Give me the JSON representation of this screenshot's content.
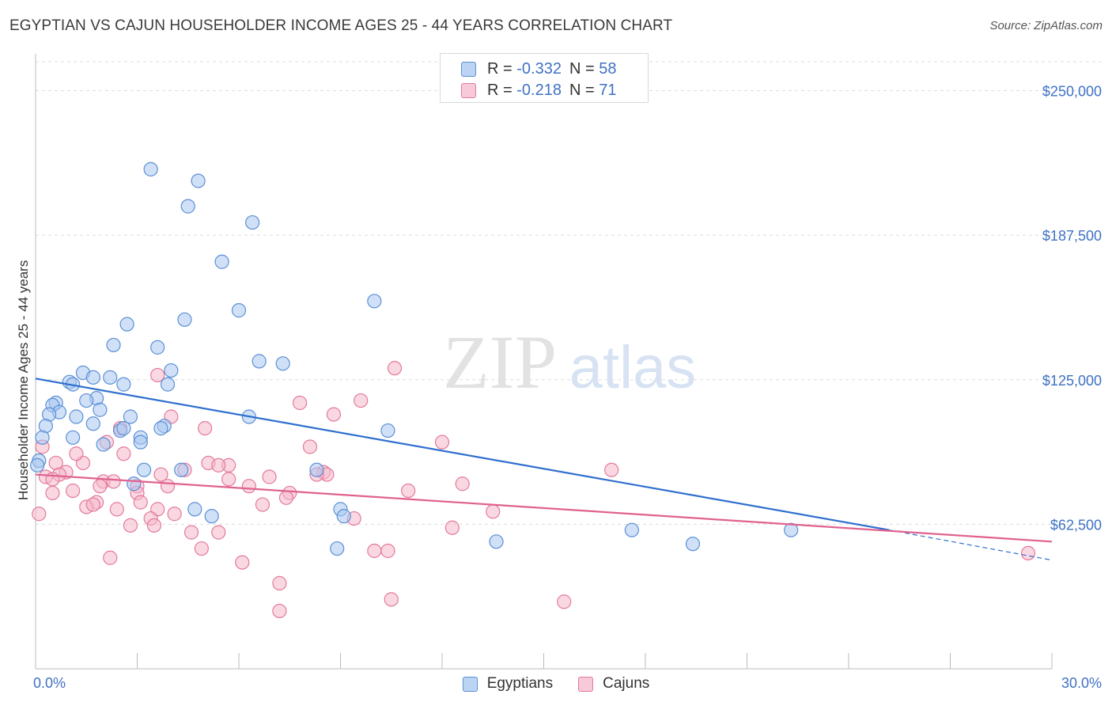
{
  "title": "EGYPTIAN VS CAJUN HOUSEHOLDER INCOME AGES 25 - 44 YEARS CORRELATION CHART",
  "source": "Source: ZipAtlas.com",
  "watermark": {
    "zip": "ZIP",
    "atlas": "atlas"
  },
  "legend_top": {
    "rows": [
      {
        "r_label": "R =",
        "r_value": "-0.332",
        "n_label": "N =",
        "n_value": "58"
      },
      {
        "r_label": "R =",
        "r_value": "-0.218",
        "n_label": "N =",
        "n_value": "71"
      }
    ]
  },
  "legend_bottom": {
    "egyptians": "Egyptians",
    "cajuns": "Cajuns"
  },
  "colors": {
    "blue_fill": "#a9c8f0",
    "blue_stroke": "#5b8fd6",
    "blue_line": "#2f6fce",
    "pink_fill": "#f6b8cb",
    "pink_stroke": "#e37a9c",
    "pink_line": "#e0628f",
    "tick_text": "#3f72c4",
    "grid": "#dcdcdc"
  },
  "chart_data": {
    "type": "scatter",
    "title": "EGYPTIAN VS CAJUN HOUSEHOLDER INCOME AGES 25 - 44 YEARS CORRELATION CHART",
    "xlabel": "",
    "ylabel": "Householder Income Ages 25 - 44 years",
    "xlim": [
      0,
      30
    ],
    "ylim": [
      0,
      262500
    ],
    "x_tick_labels": [
      "0.0%",
      "30.0%"
    ],
    "y_ticks": [
      62500,
      125000,
      187500,
      250000
    ],
    "y_tick_labels": [
      "$62,500",
      "$125,000",
      "$187,500",
      "$250,000"
    ],
    "grid": true,
    "legend_position": "top-center",
    "series": [
      {
        "name": "Egyptians",
        "r": -0.332,
        "n": 58,
        "trend": {
          "x0": 0,
          "y0": 125500,
          "x1": 25.2,
          "y1": 60000,
          "dashed_to_x": 30,
          "dashed_to_y": 47000
        },
        "points": [
          [
            3.4,
            216000
          ],
          [
            4.8,
            211000
          ],
          [
            4.5,
            200000
          ],
          [
            6.4,
            193000
          ],
          [
            5.5,
            176000
          ],
          [
            6.0,
            155000
          ],
          [
            10.0,
            159000
          ],
          [
            2.7,
            149000
          ],
          [
            4.4,
            151000
          ],
          [
            2.3,
            140000
          ],
          [
            3.6,
            139000
          ],
          [
            6.6,
            133000
          ],
          [
            7.3,
            132000
          ],
          [
            4.0,
            129000
          ],
          [
            1.4,
            128000
          ],
          [
            2.2,
            126000
          ],
          [
            1.7,
            126000
          ],
          [
            1.0,
            124000
          ],
          [
            2.6,
            123000
          ],
          [
            3.9,
            123000
          ],
          [
            1.1,
            123000
          ],
          [
            0.6,
            115000
          ],
          [
            0.5,
            114000
          ],
          [
            1.8,
            117000
          ],
          [
            1.5,
            116000
          ],
          [
            1.9,
            112000
          ],
          [
            0.7,
            111000
          ],
          [
            1.2,
            109000
          ],
          [
            0.4,
            110000
          ],
          [
            2.8,
            109000
          ],
          [
            0.3,
            105000
          ],
          [
            1.7,
            106000
          ],
          [
            3.8,
            105000
          ],
          [
            3.7,
            104000
          ],
          [
            2.5,
            103000
          ],
          [
            2.6,
            104000
          ],
          [
            6.3,
            109000
          ],
          [
            10.4,
            103000
          ],
          [
            1.1,
            100000
          ],
          [
            3.1,
            100000
          ],
          [
            3.1,
            98000
          ],
          [
            2.0,
            97000
          ],
          [
            0.2,
            100000
          ],
          [
            0.1,
            90000
          ],
          [
            3.2,
            86000
          ],
          [
            4.3,
            86000
          ],
          [
            8.3,
            86000
          ],
          [
            2.9,
            80000
          ],
          [
            9.0,
            69000
          ],
          [
            4.7,
            69000
          ],
          [
            5.2,
            66000
          ],
          [
            9.1,
            66000
          ],
          [
            17.6,
            60000
          ],
          [
            22.3,
            60000
          ],
          [
            13.6,
            55000
          ],
          [
            19.4,
            54000
          ],
          [
            8.9,
            52000
          ],
          [
            0.05,
            88000
          ]
        ]
      },
      {
        "name": "Cajuns",
        "r": -0.218,
        "n": 71,
        "trend": {
          "x0": 0,
          "y0": 84000,
          "x1": 30,
          "y1": 55000
        },
        "points": [
          [
            10.6,
            130000
          ],
          [
            3.6,
            127000
          ],
          [
            9.6,
            116000
          ],
          [
            7.8,
            115000
          ],
          [
            8.8,
            110000
          ],
          [
            4.0,
            109000
          ],
          [
            5.0,
            104000
          ],
          [
            2.5,
            104000
          ],
          [
            12.0,
            98000
          ],
          [
            8.1,
            96000
          ],
          [
            2.1,
            98000
          ],
          [
            0.2,
            96000
          ],
          [
            2.6,
            93000
          ],
          [
            0.6,
            89000
          ],
          [
            1.4,
            89000
          ],
          [
            5.1,
            89000
          ],
          [
            5.7,
            88000
          ],
          [
            5.4,
            88000
          ],
          [
            4.4,
            86000
          ],
          [
            17.0,
            86000
          ],
          [
            0.9,
            85000
          ],
          [
            0.7,
            84000
          ],
          [
            3.7,
            84000
          ],
          [
            6.9,
            83000
          ],
          [
            8.5,
            85000
          ],
          [
            8.6,
            84000
          ],
          [
            8.3,
            84000
          ],
          [
            5.7,
            82000
          ],
          [
            0.3,
            83000
          ],
          [
            0.5,
            82000
          ],
          [
            2.0,
            81000
          ],
          [
            2.3,
            81000
          ],
          [
            1.9,
            79000
          ],
          [
            3.0,
            79000
          ],
          [
            3.9,
            79000
          ],
          [
            6.3,
            79000
          ],
          [
            12.6,
            80000
          ],
          [
            1.1,
            77000
          ],
          [
            0.5,
            76000
          ],
          [
            3.0,
            76000
          ],
          [
            7.5,
            76000
          ],
          [
            11.0,
            77000
          ],
          [
            7.4,
            74000
          ],
          [
            1.8,
            72000
          ],
          [
            1.5,
            70000
          ],
          [
            3.1,
            72000
          ],
          [
            6.7,
            71000
          ],
          [
            1.7,
            71000
          ],
          [
            2.4,
            69000
          ],
          [
            3.6,
            69000
          ],
          [
            4.1,
            67000
          ],
          [
            13.5,
            68000
          ],
          [
            0.1,
            67000
          ],
          [
            9.4,
            65000
          ],
          [
            3.4,
            65000
          ],
          [
            3.5,
            62000
          ],
          [
            2.8,
            62000
          ],
          [
            12.3,
            61000
          ],
          [
            4.6,
            59000
          ],
          [
            5.4,
            59000
          ],
          [
            4.9,
            52000
          ],
          [
            10.0,
            51000
          ],
          [
            10.4,
            51000
          ],
          [
            29.3,
            50000
          ],
          [
            6.1,
            46000
          ],
          [
            7.2,
            37000
          ],
          [
            10.5,
            30000
          ],
          [
            15.6,
            29000
          ],
          [
            7.2,
            25000
          ],
          [
            2.2,
            48000
          ],
          [
            1.2,
            93000
          ]
        ]
      }
    ]
  }
}
